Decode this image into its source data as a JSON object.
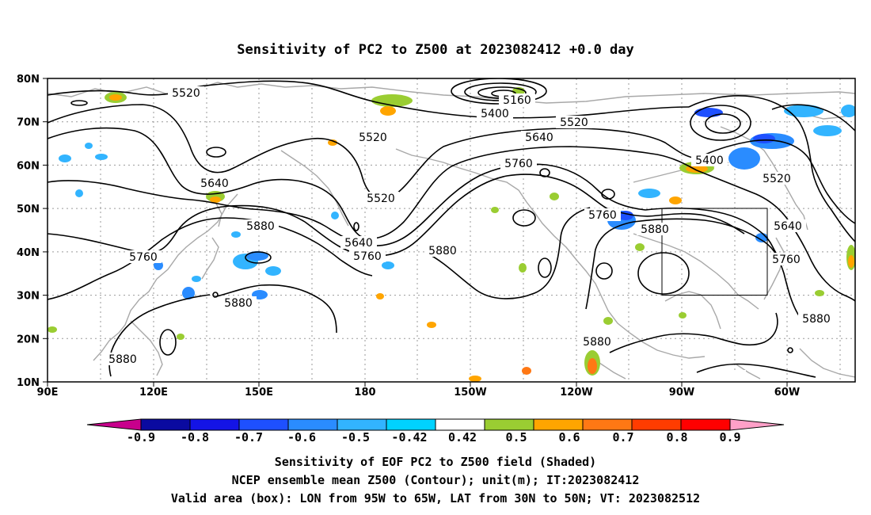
{
  "title": "Sensitivity of PC2 to Z500 at 2023082412 +0.0 day",
  "map": {
    "lat_labels": [
      "80N",
      "70N",
      "60N",
      "50N",
      "40N",
      "30N",
      "20N",
      "10N"
    ],
    "lon_labels": [
      "90E",
      "120E",
      "150E",
      "180",
      "150W",
      "120W",
      "90W",
      "60W"
    ],
    "valid_box": {
      "lon_from": "95W",
      "lon_to": "65W",
      "lat_from": "30N",
      "lat_to": "50N"
    }
  },
  "contour_labels": [
    "5520",
    "5160",
    "5400",
    "5520",
    "5640",
    "5520",
    "5760",
    "5640",
    "5520",
    "5400",
    "5520",
    "5880",
    "5760",
    "5640",
    "5760",
    "5880",
    "5760",
    "5640",
    "5760",
    "5880",
    "5880",
    "5880",
    "5880",
    "5880"
  ],
  "colorbar": {
    "labels": [
      "-0.9",
      "-0.8",
      "-0.7",
      "-0.6",
      "-0.5",
      "-0.42",
      "0.42",
      "0.5",
      "0.6",
      "0.7",
      "0.8",
      "0.9"
    ],
    "colors": [
      "#0a0aa0",
      "#1414e6",
      "#1e50ff",
      "#2a8cff",
      "#32b4ff",
      "#00d2ff",
      "#ffffff",
      "#9acd32",
      "#ffa500",
      "#ff7814",
      "#ff3c00",
      "#ff0000"
    ],
    "low_end_color": "#c8008c",
    "high_end_color": "#ffa0c8"
  },
  "caption": {
    "line1": "Sensitivity of EOF PC2 to Z500 field (Shaded)",
    "line2": "NCEP ensemble mean Z500 (Contour); unit(m); IT:2023082412",
    "line3": "Valid area (box): LON from 95W to 65W, LAT from 30N to 50N; VT: 2023082512"
  }
}
